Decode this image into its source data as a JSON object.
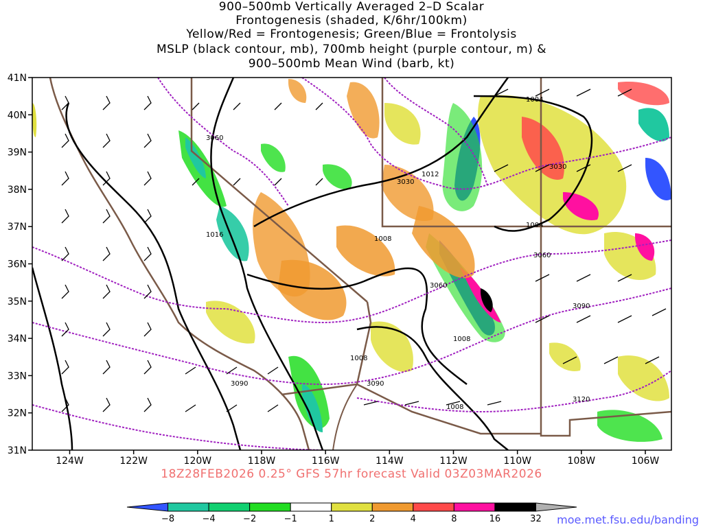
{
  "title": {
    "lines": [
      "900–500mb Vertically Averaged 2–D Scalar",
      "Frontogenesis (shaded, K/6hr/100km)",
      "Yellow/Red = Frontogenesis;  Green/Blue = Frontolysis",
      "MSLP (black contour, mb), 700mb height (purple contour, m) &",
      "900–500mb Mean Wind (barb, kt)"
    ]
  },
  "axes": {
    "lat_labels": [
      "41N",
      "40N",
      "39N",
      "38N",
      "37N",
      "36N",
      "35N",
      "34N",
      "33N",
      "32N",
      "31N"
    ],
    "lon_labels": [
      "124W",
      "122W",
      "120W",
      "118W",
      "116W",
      "114W",
      "112W",
      "110W",
      "108W",
      "106W"
    ]
  },
  "contour_labels": {
    "mslp": [
      "1004",
      "1012",
      "1004",
      "1016",
      "1008",
      "1008",
      "1008",
      "1008"
    ],
    "height": [
      "3060",
      "3030",
      "3030",
      "3060",
      "3060",
      "3090",
      "3090",
      "3090",
      "3120"
    ]
  },
  "colorbar": {
    "labels": [
      "−8",
      "−4",
      "−2",
      "−1",
      "1",
      "2",
      "4",
      "8",
      "16",
      "32"
    ],
    "colors": [
      "#3355ff",
      "#20c8a0",
      "#10d070",
      "#22dd22",
      "#ffffff",
      "#e0e040",
      "#f09a30",
      "#ff4a4a",
      "#ff10a0",
      "#000000",
      "#b0b0b0"
    ]
  },
  "footer": "18Z28FEB2026 0.25° GFS 57hr forecast Valid 03Z03MAR2026",
  "credit": "moe.met.fsu.edu/banding"
}
